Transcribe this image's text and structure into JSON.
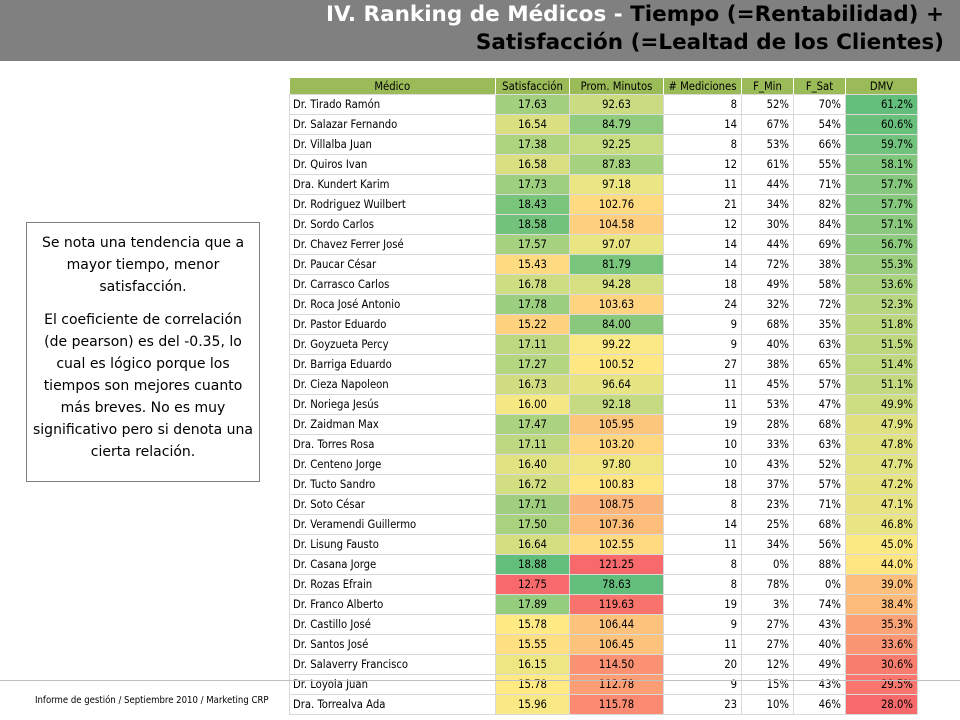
{
  "header": {
    "title_part1": "IV. Ranking de Médicos - ",
    "title_part2": "Tiempo (=Rentabilidad) +",
    "title_line2": "Satisfacción (=Lealtad de los Clientes)"
  },
  "note": {
    "paragraph1": "Se nota una tendencia que a mayor tiempo, menor satisfacción.",
    "paragraph2": "El coeficiente de correlación (de pearson) es del -0.35, lo cual es lógico porque los tiempos son mejores cuanto más breves. No es muy significativo pero si denota una cierta relación."
  },
  "table": {
    "headers": [
      "Médico",
      "Satisfacción",
      "Prom. Minutos",
      "# Mediciones",
      "F_Min",
      "F_Sat",
      "DMV"
    ],
    "rows": [
      [
        "Dr. Tirado Ramón",
        "17.63",
        "92.63",
        "8",
        "52%",
        "70%",
        "61.2%"
      ],
      [
        "Dr. Salazar Fernando",
        "16.54",
        "84.79",
        "14",
        "67%",
        "54%",
        "60.6%"
      ],
      [
        "Dr. Villalba Juan",
        "17.38",
        "92.25",
        "8",
        "53%",
        "66%",
        "59.7%"
      ],
      [
        "Dr. Quiros Ivan",
        "16.58",
        "87.83",
        "12",
        "61%",
        "55%",
        "58.1%"
      ],
      [
        "Dra. Kundert Karim",
        "17.73",
        "97.18",
        "11",
        "44%",
        "71%",
        "57.7%"
      ],
      [
        "Dr. Rodriguez Wuilbert",
        "18.43",
        "102.76",
        "21",
        "34%",
        "82%",
        "57.7%"
      ],
      [
        "Dr. Sordo Carlos",
        "18.58",
        "104.58",
        "12",
        "30%",
        "84%",
        "57.1%"
      ],
      [
        "Dr. Chavez Ferrer José",
        "17.57",
        "97.07",
        "14",
        "44%",
        "69%",
        "56.7%"
      ],
      [
        "Dr. Paucar César",
        "15.43",
        "81.79",
        "14",
        "72%",
        "38%",
        "55.3%"
      ],
      [
        "Dr. Carrasco Carlos",
        "16.78",
        "94.28",
        "18",
        "49%",
        "58%",
        "53.6%"
      ],
      [
        "Dr. Roca José Antonio",
        "17.78",
        "103.63",
        "24",
        "32%",
        "72%",
        "52.3%"
      ],
      [
        "Dr. Pastor Eduardo",
        "15.22",
        "84.00",
        "9",
        "68%",
        "35%",
        "51.8%"
      ],
      [
        "Dr. Goyzueta Percy",
        "17.11",
        "99.22",
        "9",
        "40%",
        "63%",
        "51.5%"
      ],
      [
        "Dr. Barriga Eduardo",
        "17.27",
        "100.52",
        "27",
        "38%",
        "65%",
        "51.4%"
      ],
      [
        "Dr. Cieza Napoleon",
        "16.73",
        "96.64",
        "11",
        "45%",
        "57%",
        "51.1%"
      ],
      [
        "Dr. Noriega Jesús",
        "16.00",
        "92.18",
        "11",
        "53%",
        "47%",
        "49.9%"
      ],
      [
        "Dr. Zaidman Max",
        "17.47",
        "105.95",
        "19",
        "28%",
        "68%",
        "47.9%"
      ],
      [
        "Dra. Torres Rosa",
        "17.11",
        "103.20",
        "10",
        "33%",
        "63%",
        "47.8%"
      ],
      [
        "Dr. Centeno Jorge",
        "16.40",
        "97.80",
        "10",
        "43%",
        "52%",
        "47.7%"
      ],
      [
        "Dr. Tucto Sandro",
        "16.72",
        "100.83",
        "18",
        "37%",
        "57%",
        "47.2%"
      ],
      [
        "Dr. Soto César",
        "17.71",
        "108.75",
        "8",
        "23%",
        "71%",
        "47.1%"
      ],
      [
        "Dr. Veramendi Guillermo",
        "17.50",
        "107.36",
        "14",
        "25%",
        "68%",
        "46.8%"
      ],
      [
        "Dr. Lisung Fausto",
        "16.64",
        "102.55",
        "11",
        "34%",
        "56%",
        "45.0%"
      ],
      [
        "Dr. Casana Jorge",
        "18.88",
        "121.25",
        "8",
        "0%",
        "88%",
        "44.0%"
      ],
      [
        "Dr. Rozas Efrain",
        "12.75",
        "78.63",
        "8",
        "78%",
        "0%",
        "39.0%"
      ],
      [
        "Dr. Franco Alberto",
        "17.89",
        "119.63",
        "19",
        "3%",
        "74%",
        "38.4%"
      ],
      [
        "Dr. Castillo José",
        "15.78",
        "106.44",
        "9",
        "27%",
        "43%",
        "35.3%"
      ],
      [
        "Dr. Santos José",
        "15.55",
        "106.45",
        "11",
        "27%",
        "40%",
        "33.6%"
      ],
      [
        "Dr. Salaverry Francisco",
        "16.15",
        "114.50",
        "20",
        "12%",
        "49%",
        "30.6%"
      ],
      [
        "Dr. Loyola Juan",
        "15.78",
        "112.78",
        "9",
        "15%",
        "43%",
        "29.5%"
      ],
      [
        "Dra. Torrealva Ada",
        "15.96",
        "115.78",
        "23",
        "10%",
        "46%",
        "28.0%"
      ]
    ]
  },
  "footer": {
    "text": "Informe de gestión / Septiembre 2010 / Marketing  CRP"
  },
  "colors": {
    "header_bg": "#808080",
    "table_header_bg": "#9bbb59",
    "scale_green": "#63be7b",
    "scale_yellow": "#ffeb84",
    "scale_red": "#f8696b"
  }
}
